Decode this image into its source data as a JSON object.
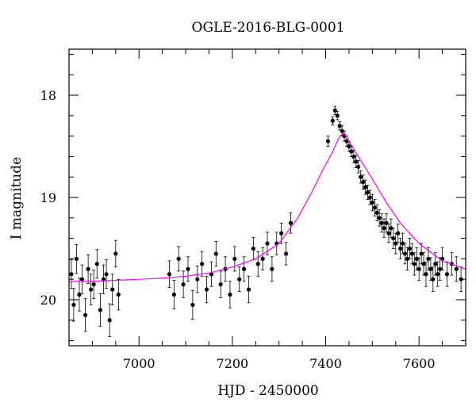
{
  "chart_data": {
    "type": "scatter",
    "title": "OGLE-2016-BLG-0001",
    "xlabel": "HJD - 2450000",
    "ylabel": "I magnitude",
    "xlim": [
      6850,
      7700
    ],
    "ylim": [
      20.45,
      17.55
    ],
    "y_inverted": true,
    "grid": false,
    "legend": "none",
    "x_ticks": [
      7000,
      7200,
      7400,
      7600
    ],
    "x_tick_labels": [
      "7000",
      "7200",
      "7400",
      "7600"
    ],
    "y_ticks": [
      18,
      19,
      20
    ],
    "y_tick_labels": [
      "18",
      "19",
      "20"
    ],
    "colors": {
      "data": "#000000",
      "model": "#ff00ff"
    },
    "series": [
      {
        "type": "scatter_errorbar",
        "x": [
          6855,
          6860,
          6866,
          6872,
          6878,
          6885,
          6891,
          6897,
          6903,
          6910,
          6917,
          6924,
          6930,
          6937,
          6943,
          6950,
          6956,
          7065,
          7075,
          7085,
          7095,
          7105,
          7115,
          7125,
          7135,
          7145,
          7155,
          7165,
          7175,
          7185,
          7195,
          7205,
          7215,
          7225,
          7235,
          7245,
          7255,
          7265,
          7275,
          7285,
          7295,
          7305,
          7315,
          7325,
          7405,
          7415,
          7420,
          7425,
          7430,
          7435,
          7440,
          7445,
          7450,
          7455,
          7460,
          7465,
          7470,
          7475,
          7480,
          7485,
          7490,
          7495,
          7500,
          7505,
          7510,
          7515,
          7520,
          7525,
          7530,
          7535,
          7540,
          7545,
          7550,
          7555,
          7560,
          7565,
          7570,
          7575,
          7580,
          7585,
          7590,
          7595,
          7600,
          7605,
          7610,
          7615,
          7620,
          7625,
          7630,
          7635,
          7640,
          7645,
          7650,
          7660,
          7670,
          7680,
          7690
        ],
        "y": [
          19.75,
          20.05,
          19.6,
          19.95,
          19.8,
          20.15,
          19.7,
          19.9,
          19.85,
          19.65,
          20.1,
          19.8,
          19.75,
          20.2,
          19.9,
          19.55,
          19.95,
          19.75,
          19.95,
          19.6,
          19.85,
          19.7,
          20.05,
          19.8,
          19.65,
          19.9,
          19.75,
          19.55,
          19.85,
          19.7,
          19.95,
          19.6,
          19.8,
          19.7,
          19.9,
          19.5,
          19.65,
          19.6,
          19.45,
          19.7,
          19.45,
          19.35,
          19.55,
          19.25,
          18.45,
          18.25,
          18.15,
          18.2,
          18.3,
          18.35,
          18.4,
          18.45,
          18.5,
          18.55,
          18.6,
          18.65,
          18.7,
          18.8,
          18.85,
          18.9,
          18.95,
          19.0,
          19.05,
          19.1,
          19.15,
          19.2,
          19.25,
          19.3,
          19.25,
          19.35,
          19.3,
          19.4,
          19.45,
          19.35,
          19.5,
          19.45,
          19.55,
          19.6,
          19.5,
          19.55,
          19.65,
          19.6,
          19.7,
          19.55,
          19.65,
          19.75,
          19.6,
          19.7,
          19.8,
          19.65,
          19.75,
          19.7,
          19.6,
          19.75,
          19.65,
          19.7,
          19.8
        ],
        "yerr": [
          0.14,
          0.16,
          0.14,
          0.16,
          0.14,
          0.16,
          0.14,
          0.15,
          0.14,
          0.14,
          0.16,
          0.14,
          0.14,
          0.16,
          0.15,
          0.13,
          0.15,
          0.13,
          0.14,
          0.12,
          0.13,
          0.12,
          0.14,
          0.13,
          0.12,
          0.13,
          0.12,
          0.12,
          0.13,
          0.12,
          0.13,
          0.12,
          0.12,
          0.12,
          0.13,
          0.11,
          0.12,
          0.11,
          0.11,
          0.12,
          0.11,
          0.1,
          0.11,
          0.1,
          0.05,
          0.04,
          0.04,
          0.04,
          0.04,
          0.05,
          0.05,
          0.05,
          0.05,
          0.05,
          0.06,
          0.06,
          0.06,
          0.06,
          0.07,
          0.07,
          0.07,
          0.07,
          0.08,
          0.08,
          0.08,
          0.08,
          0.09,
          0.09,
          0.09,
          0.09,
          0.09,
          0.1,
          0.1,
          0.09,
          0.1,
          0.1,
          0.1,
          0.11,
          0.1,
          0.1,
          0.11,
          0.11,
          0.11,
          0.1,
          0.11,
          0.12,
          0.11,
          0.11,
          0.12,
          0.11,
          0.12,
          0.11,
          0.11,
          0.12,
          0.11,
          0.12,
          0.12
        ]
      },
      {
        "type": "line",
        "x": [
          6850,
          6900,
          6950,
          7000,
          7050,
          7100,
          7150,
          7200,
          7250,
          7300,
          7340,
          7370,
          7395,
          7415,
          7430,
          7440,
          7450,
          7470,
          7500,
          7530,
          7560,
          7600,
          7650,
          7700
        ],
        "y": [
          19.82,
          19.82,
          19.81,
          19.8,
          19.79,
          19.77,
          19.74,
          19.68,
          19.6,
          19.45,
          19.2,
          18.95,
          18.72,
          18.55,
          18.4,
          18.37,
          18.45,
          18.6,
          18.82,
          19.05,
          19.25,
          19.45,
          19.62,
          19.7
        ]
      }
    ]
  }
}
